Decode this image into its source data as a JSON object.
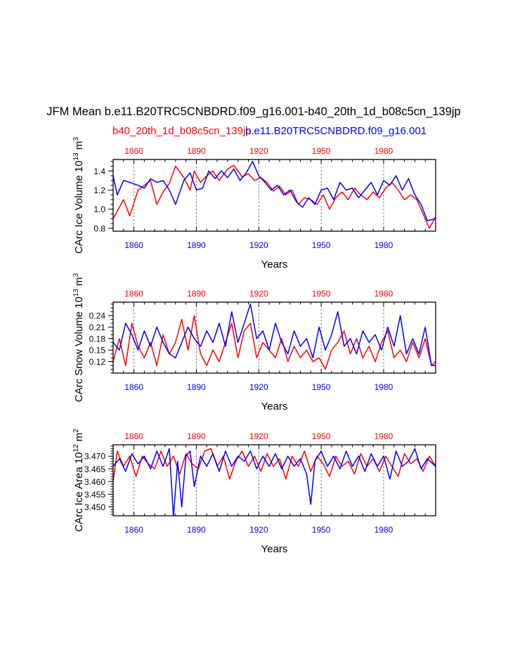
{
  "title": "JFM Mean b.e11.B20TRC5CNBDRD.f09_g16.001-b40_20th_1d_b08c5cn_139jp",
  "legend": {
    "case_red": "b40_20th_1d_b08c5cn_139jp",
    "case_blue": "b.e11.B20TRC5CNBDRD.f09_g16.001"
  },
  "colors": {
    "red": "#ff0000",
    "blue": "#0000ff",
    "axis": "#000000",
    "grid": "#555555"
  },
  "chart_data": [
    {
      "type": "line",
      "name": "ice-volume",
      "xlabel": "Years",
      "ylabel": "CArc Ice Volume 10",
      "ylabel_exp": "13",
      "ylabel_unit": " m",
      "ylabel_unit_exp": "3",
      "xlim": [
        1850,
        2005
      ],
      "ylim": [
        0.77,
        1.52
      ],
      "xticks": [
        1860,
        1890,
        1920,
        1950,
        1980
      ],
      "xtick_labels": [
        "1860",
        "1890",
        "1920",
        "1950",
        "1980"
      ],
      "yticks": [
        0.8,
        1.0,
        1.2,
        1.4
      ],
      "ytick_labels": [
        "0.8",
        "1.0",
        "1.2",
        "1.4"
      ],
      "yminor_step": 0.05,
      "series": [
        {
          "name": "b40_20th_1d_b08c5cn_139jp",
          "color": "#ff0000",
          "x": [
            1850,
            1855,
            1858,
            1862,
            1865,
            1868,
            1871,
            1874,
            1877,
            1880,
            1884,
            1887,
            1889,
            1892,
            1895,
            1898,
            1901,
            1905,
            1908,
            1912,
            1915,
            1918,
            1921,
            1924,
            1927,
            1930,
            1933,
            1936,
            1939,
            1942,
            1945,
            1948,
            1951,
            1954,
            1957,
            1960,
            1963,
            1966,
            1969,
            1972,
            1975,
            1978,
            1981,
            1984,
            1987,
            1990,
            1993,
            1996,
            1999,
            2002,
            2005
          ],
          "values": [
            0.9,
            1.1,
            0.93,
            1.2,
            1.25,
            1.3,
            1.05,
            1.18,
            1.27,
            1.45,
            1.33,
            1.2,
            1.4,
            1.28,
            1.35,
            1.4,
            1.3,
            1.42,
            1.46,
            1.34,
            1.37,
            1.3,
            1.33,
            1.28,
            1.19,
            1.24,
            1.15,
            1.2,
            1.05,
            1.12,
            1.1,
            1.05,
            1.15,
            1.0,
            1.12,
            1.18,
            1.1,
            1.22,
            1.15,
            1.1,
            1.18,
            1.12,
            1.22,
            1.28,
            1.2,
            1.1,
            1.15,
            1.1,
            0.95,
            0.8,
            0.92
          ]
        },
        {
          "name": "b.e11.B20TRC5CNBDRD.f09_g16.001",
          "color": "#0000ff",
          "x": [
            1850,
            1852,
            1855,
            1858,
            1862,
            1865,
            1868,
            1871,
            1874,
            1877,
            1880,
            1884,
            1887,
            1890,
            1893,
            1896,
            1899,
            1902,
            1905,
            1908,
            1911,
            1914,
            1917,
            1920,
            1923,
            1926,
            1929,
            1932,
            1935,
            1938,
            1941,
            1944,
            1947,
            1950,
            1953,
            1956,
            1959,
            1962,
            1965,
            1968,
            1971,
            1974,
            1977,
            1980,
            1983,
            1986,
            1989,
            1992,
            1995,
            1998,
            2001,
            2005
          ],
          "values": [
            1.35,
            1.15,
            1.3,
            1.28,
            1.25,
            1.22,
            1.32,
            1.28,
            1.3,
            1.2,
            1.05,
            1.3,
            1.38,
            1.2,
            1.22,
            1.4,
            1.32,
            1.4,
            1.33,
            1.42,
            1.3,
            1.38,
            1.5,
            1.35,
            1.28,
            1.2,
            1.25,
            1.15,
            1.2,
            1.08,
            1.02,
            1.12,
            1.05,
            1.2,
            1.22,
            1.1,
            1.28,
            1.2,
            1.22,
            1.12,
            1.2,
            1.28,
            1.15,
            1.3,
            1.25,
            1.35,
            1.2,
            1.32,
            1.15,
            1.05,
            0.88,
            0.9
          ]
        }
      ]
    },
    {
      "type": "line",
      "name": "snow-volume",
      "xlabel": "Years",
      "ylabel": "CArc Snow Volume 10",
      "ylabel_exp": "13",
      "ylabel_unit": " m",
      "ylabel_unit_exp": "3",
      "xlim": [
        1850,
        2005
      ],
      "ylim": [
        0.09,
        0.275
      ],
      "xticks": [
        1860,
        1890,
        1920,
        1950,
        1980
      ],
      "xtick_labels": [
        "1860",
        "1890",
        "1920",
        "1950",
        "1980"
      ],
      "yticks": [
        0.12,
        0.15,
        0.18,
        0.21,
        0.24
      ],
      "ytick_labels": [
        "0.12",
        "0.15",
        "0.18",
        "0.21",
        "0.24"
      ],
      "yminor_step": 0.01,
      "series": [
        {
          "name": "b40_20th_1d_b08c5cn_139jp",
          "color": "#ff0000",
          "x": [
            1850,
            1853,
            1856,
            1859,
            1862,
            1865,
            1868,
            1871,
            1874,
            1877,
            1880,
            1883,
            1886,
            1889,
            1892,
            1895,
            1898,
            1901,
            1904,
            1907,
            1910,
            1913,
            1916,
            1919,
            1922,
            1925,
            1928,
            1931,
            1934,
            1937,
            1940,
            1943,
            1946,
            1949,
            1952,
            1955,
            1958,
            1961,
            1964,
            1967,
            1970,
            1973,
            1976,
            1979,
            1982,
            1985,
            1988,
            1991,
            1994,
            1997,
            2000,
            2003,
            2005
          ],
          "values": [
            0.12,
            0.18,
            0.11,
            0.22,
            0.16,
            0.13,
            0.17,
            0.11,
            0.19,
            0.14,
            0.17,
            0.23,
            0.15,
            0.24,
            0.14,
            0.11,
            0.15,
            0.12,
            0.17,
            0.22,
            0.13,
            0.2,
            0.22,
            0.13,
            0.17,
            0.15,
            0.13,
            0.18,
            0.12,
            0.16,
            0.13,
            0.15,
            0.12,
            0.13,
            0.1,
            0.15,
            0.17,
            0.2,
            0.14,
            0.18,
            0.13,
            0.16,
            0.12,
            0.17,
            0.2,
            0.13,
            0.15,
            0.12,
            0.17,
            0.13,
            0.18,
            0.11,
            0.12
          ]
        },
        {
          "name": "b.e11.B20TRC5CNBDRD.f09_g16.001",
          "color": "#0000ff",
          "x": [
            1850,
            1853,
            1856,
            1859,
            1862,
            1865,
            1868,
            1871,
            1874,
            1877,
            1880,
            1883,
            1886,
            1889,
            1892,
            1895,
            1898,
            1901,
            1904,
            1907,
            1910,
            1913,
            1916,
            1919,
            1922,
            1925,
            1928,
            1931,
            1934,
            1937,
            1940,
            1943,
            1946,
            1949,
            1952,
            1955,
            1958,
            1961,
            1964,
            1967,
            1970,
            1973,
            1976,
            1979,
            1982,
            1985,
            1988,
            1991,
            1994,
            1997,
            2000,
            2003,
            2005
          ],
          "values": [
            0.17,
            0.15,
            0.22,
            0.19,
            0.15,
            0.2,
            0.16,
            0.21,
            0.17,
            0.14,
            0.13,
            0.17,
            0.21,
            0.18,
            0.16,
            0.2,
            0.17,
            0.22,
            0.16,
            0.25,
            0.17,
            0.22,
            0.27,
            0.18,
            0.2,
            0.15,
            0.22,
            0.17,
            0.14,
            0.2,
            0.16,
            0.18,
            0.13,
            0.21,
            0.15,
            0.19,
            0.25,
            0.16,
            0.18,
            0.14,
            0.2,
            0.17,
            0.19,
            0.15,
            0.21,
            0.16,
            0.24,
            0.14,
            0.18,
            0.14,
            0.21,
            0.11,
            0.11
          ]
        }
      ]
    },
    {
      "type": "line",
      "name": "ice-area",
      "xlabel": "Years",
      "ylabel": "CArc Ice Area 10",
      "ylabel_exp": "12",
      "ylabel_unit": " m",
      "ylabel_unit_exp": "2",
      "xlim": [
        1850,
        2005
      ],
      "ylim": [
        3.4465,
        3.4745
      ],
      "xticks": [
        1860,
        1890,
        1920,
        1950,
        1980
      ],
      "xtick_labels": [
        "1860",
        "1890",
        "1920",
        "1950",
        "1980"
      ],
      "yticks": [
        3.45,
        3.455,
        3.46,
        3.465,
        3.47
      ],
      "ytick_labels": [
        "3.450",
        "3.455",
        "3.460",
        "3.465",
        "3.470"
      ],
      "yminor_step": 0.001,
      "series": [
        {
          "name": "b40_20th_1d_b08c5cn_139jp",
          "color": "#ff0000",
          "x": [
            1850,
            1852,
            1855,
            1858,
            1861,
            1864,
            1867,
            1870,
            1873,
            1876,
            1879,
            1882,
            1885,
            1888,
            1891,
            1894,
            1897,
            1900,
            1903,
            1906,
            1909,
            1912,
            1915,
            1918,
            1921,
            1924,
            1927,
            1930,
            1933,
            1936,
            1939,
            1942,
            1945,
            1948,
            1951,
            1954,
            1957,
            1960,
            1963,
            1966,
            1969,
            1972,
            1975,
            1978,
            1981,
            1984,
            1987,
            1990,
            1993,
            1996,
            1999,
            2002,
            2005
          ],
          "values": [
            3.46,
            3.472,
            3.466,
            3.47,
            3.462,
            3.47,
            3.467,
            3.465,
            3.472,
            3.466,
            3.47,
            3.463,
            3.471,
            3.467,
            3.465,
            3.472,
            3.473,
            3.466,
            3.47,
            3.461,
            3.468,
            3.472,
            3.466,
            3.47,
            3.464,
            3.471,
            3.466,
            3.469,
            3.461,
            3.47,
            3.466,
            3.472,
            3.464,
            3.47,
            3.467,
            3.462,
            3.47,
            3.466,
            3.468,
            3.463,
            3.471,
            3.466,
            3.469,
            3.464,
            3.47,
            3.466,
            3.462,
            3.471,
            3.467,
            3.469,
            3.464,
            3.47,
            3.466
          ]
        },
        {
          "name": "b.e11.B20TRC5CNBDRD.f09_g16.001",
          "color": "#0000ff",
          "x": [
            1850,
            1853,
            1856,
            1859,
            1862,
            1865,
            1868,
            1871,
            1874,
            1877,
            1879,
            1881,
            1883,
            1885,
            1887,
            1889,
            1892,
            1895,
            1898,
            1901,
            1904,
            1907,
            1910,
            1913,
            1916,
            1919,
            1922,
            1925,
            1928,
            1931,
            1934,
            1937,
            1940,
            1943,
            1945,
            1947,
            1950,
            1953,
            1956,
            1959,
            1962,
            1965,
            1968,
            1971,
            1974,
            1977,
            1980,
            1983,
            1986,
            1989,
            1992,
            1995,
            1998,
            2001,
            2005
          ],
          "values": [
            3.466,
            3.469,
            3.464,
            3.471,
            3.467,
            3.47,
            3.465,
            3.472,
            3.466,
            3.473,
            3.446,
            3.468,
            3.45,
            3.47,
            3.472,
            3.458,
            3.47,
            3.466,
            3.471,
            3.464,
            3.472,
            3.466,
            3.47,
            3.468,
            3.472,
            3.465,
            3.47,
            3.466,
            3.471,
            3.465,
            3.47,
            3.466,
            3.469,
            3.463,
            3.451,
            3.468,
            3.472,
            3.466,
            3.47,
            3.465,
            3.472,
            3.466,
            3.47,
            3.464,
            3.471,
            3.466,
            3.47,
            3.461,
            3.472,
            3.466,
            3.468,
            3.473,
            3.465,
            3.469,
            3.466
          ]
        }
      ]
    }
  ]
}
